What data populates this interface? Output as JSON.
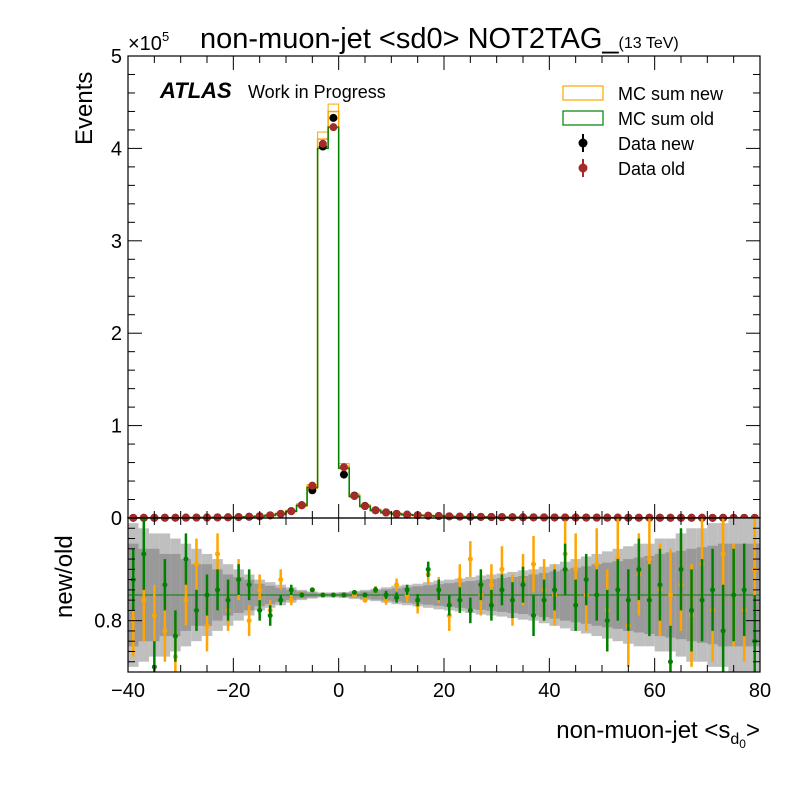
{
  "chart_data": {
    "type": "histogram",
    "title_main": "non-muon-jet <sd0> NOT2TAG_",
    "title_sub": "(13 TeV)",
    "ylabel_top": "Events",
    "ylabel_bottom": "new/old",
    "xlabel_main": "non-muon-jet <s",
    "xlabel_sub": "d",
    "xlabel_subsub": "0",
    "xlabel_end": ">",
    "atlas_label": "ATLAS",
    "atlas_sub": "Work in Progress",
    "exponent_base": "×10",
    "exponent_power": "5",
    "xlim": [
      -40,
      80
    ],
    "ylim_top": [
      0,
      500000
    ],
    "ylim_bottom": [
      0.7,
      1.0
    ],
    "x_ticks": [
      "−40",
      "−20",
      "0",
      "20",
      "40",
      "60",
      "80"
    ],
    "x_tick_values": [
      -40,
      -20,
      0,
      20,
      40,
      60,
      80
    ],
    "y_ticks_top": [
      "0",
      "1",
      "2",
      "3",
      "4",
      "5"
    ],
    "y_tick_values_top": [
      0,
      100000,
      200000,
      300000,
      400000,
      500000
    ],
    "y_ticks_bottom": [
      "0.8"
    ],
    "y_tick_values_bottom": [
      0.8
    ],
    "legend": {
      "position": "top-right",
      "entries": [
        {
          "label": "MC sum new",
          "type": "box",
          "color": "#ffa500"
        },
        {
          "label": "MC sum old",
          "type": "box",
          "color": "#008000"
        },
        {
          "label": "Data new",
          "type": "marker",
          "color": "#000000"
        },
        {
          "label": "Data old",
          "type": "marker",
          "color": "#a52a2a"
        }
      ]
    },
    "colors": {
      "mc_new": "#ffa500",
      "mc_old": "#008000",
      "data_new": "#000000",
      "data_old": "#a52a2a",
      "ratio_data": "#008000",
      "ratio_mc": "#ffa500",
      "band_light": "#bfbfbf",
      "band_dark": "#999999"
    },
    "bin_width": 2,
    "bin_centers": [
      -39,
      -37,
      -35,
      -33,
      -31,
      -29,
      -27,
      -25,
      -23,
      -21,
      -19,
      -17,
      -15,
      -13,
      -11,
      -9,
      -7,
      -5,
      -3,
      -1,
      1,
      3,
      5,
      7,
      9,
      11,
      13,
      15,
      17,
      19,
      21,
      23,
      25,
      27,
      29,
      31,
      33,
      35,
      37,
      39,
      41,
      43,
      45,
      47,
      49,
      51,
      53,
      55,
      57,
      59,
      61,
      63,
      65,
      67,
      69,
      71,
      73,
      75,
      77,
      79
    ],
    "mc_new": [
      200,
      220,
      250,
      280,
      320,
      370,
      430,
      520,
      630,
      780,
      1000,
      1350,
      1900,
      2900,
      4500,
      7500,
      14000,
      34000,
      410000,
      440000,
      56000,
      24000,
      13000,
      8500,
      6000,
      4500,
      3600,
      3000,
      2500,
      2100,
      1800,
      1550,
      1350,
      1200,
      1050,
      950,
      850,
      770,
      700,
      640,
      580,
      530,
      490,
      450,
      420,
      390,
      360,
      340,
      320,
      300,
      280,
      265,
      250,
      235,
      220,
      210,
      200,
      190,
      180,
      170
    ],
    "mc_old": [
      190,
      210,
      240,
      270,
      310,
      360,
      420,
      500,
      610,
      760,
      980,
      1320,
      1850,
      2850,
      4400,
      7300,
      13600,
      33000,
      400000,
      423000,
      54000,
      23500,
      12700,
      8300,
      5900,
      4400,
      3500,
      2950,
      2450,
      2060,
      1770,
      1520,
      1320,
      1180,
      1030,
      930,
      840,
      760,
      690,
      630,
      570,
      520,
      480,
      440,
      410,
      380,
      350,
      330,
      310,
      290,
      270,
      255,
      240,
      225,
      210,
      200,
      190,
      180,
      170,
      160
    ],
    "data_new": [
      200,
      210,
      250,
      290,
      330,
      360,
      440,
      510,
      640,
      790,
      1010,
      1340,
      1910,
      2880,
      4530,
      7480,
      13900,
      30000,
      402000,
      433000,
      47000,
      24200,
      13100,
      8450,
      6050,
      4480,
      3620,
      3010,
      2480,
      2110,
      1810,
      1540,
      1360,
      1190,
      1060,
      940,
      860,
      760,
      710,
      630,
      590,
      520,
      500,
      440,
      430,
      380,
      370,
      330,
      330,
      290,
      290,
      260,
      260,
      230,
      230,
      200,
      210,
      180,
      190,
      160
    ],
    "data_old": [
      190,
      200,
      240,
      280,
      320,
      350,
      430,
      500,
      620,
      770,
      990,
      1320,
      1880,
      2850,
      4450,
      7350,
      13700,
      35000,
      405000,
      423000,
      55000,
      23700,
      12800,
      8350,
      5950,
      4420,
      3560,
      2970,
      2450,
      2080,
      1790,
      1520,
      1340,
      1180,
      1040,
      930,
      850,
      750,
      700,
      620,
      580,
      510,
      490,
      430,
      420,
      370,
      360,
      320,
      320,
      280,
      280,
      250,
      250,
      220,
      220,
      190,
      200,
      170,
      180,
      150
    ],
    "ratio_line": 0.85,
    "ratio_data": [
      0.88,
      0.93,
      0.71,
      0.87,
      0.77,
      0.92,
      0.82,
      0.85,
      0.86,
      0.84,
      0.88,
      0.87,
      0.82,
      0.81,
      0.84,
      0.86,
      0.85,
      0.86,
      0.85,
      0.85,
      0.85,
      0.855,
      0.85,
      0.86,
      0.85,
      0.845,
      0.86,
      0.84,
      0.9,
      0.86,
      0.83,
      0.84,
      0.82,
      0.87,
      0.83,
      0.86,
      0.84,
      0.87,
      0.81,
      0.84,
      0.86,
      0.9,
      0.83,
      0.88,
      0.85,
      0.8,
      0.86,
      0.84,
      0.9,
      0.84,
      0.87,
      0.72,
      0.9,
      0.82,
      0.84,
      0.86,
      0.78,
      0.85,
      0.86,
      0.76
    ],
    "ratio_data_err": [
      0.06,
      0.07,
      0.05,
      0.05,
      0.05,
      0.05,
      0.04,
      0.04,
      0.04,
      0.04,
      0.03,
      0.03,
      0.02,
      0.02,
      0.01,
      0.01,
      0.005,
      0.003,
      0.001,
      0.001,
      0.002,
      0.003,
      0.004,
      0.006,
      0.008,
      0.01,
      0.01,
      0.012,
      0.015,
      0.02,
      0.02,
      0.025,
      0.025,
      0.03,
      0.03,
      0.03,
      0.035,
      0.035,
      0.04,
      0.04,
      0.04,
      0.05,
      0.05,
      0.05,
      0.05,
      0.06,
      0.06,
      0.06,
      0.06,
      0.07,
      0.07,
      0.07,
      0.08,
      0.08,
      0.08,
      0.08,
      0.09,
      0.09,
      0.09,
      0.09
    ],
    "ratio_mc": [
      0.8,
      0.84,
      0.81,
      0.78,
      0.73,
      0.84,
      0.91,
      0.79,
      0.93,
      0.82,
      0.88,
      0.8,
      0.86,
      0.82,
      0.88,
      0.84,
      0.85,
      0.86,
      0.85,
      0.85,
      0.85,
      0.85,
      0.84,
      0.86,
      0.84,
      0.87,
      0.85,
      0.83,
      0.89,
      0.86,
      0.81,
      0.88,
      0.92,
      0.85,
      0.87,
      0.9,
      0.84,
      0.88,
      0.91,
      0.86,
      0.85,
      0.93,
      0.9,
      0.85,
      0.91,
      0.82,
      0.92,
      0.79,
      0.89,
      0.92,
      0.86,
      0.85,
      0.87,
      0.81,
      0.91,
      0.82,
      0.93,
      0.85,
      0.82,
      0.9
    ],
    "ratio_mc_err": [
      0.07,
      0.08,
      0.06,
      0.06,
      0.06,
      0.05,
      0.05,
      0.05,
      0.04,
      0.04,
      0.04,
      0.03,
      0.03,
      0.02,
      0.02,
      0.01,
      0.006,
      0.003,
      0.001,
      0.001,
      0.002,
      0.003,
      0.005,
      0.007,
      0.009,
      0.012,
      0.014,
      0.016,
      0.02,
      0.025,
      0.03,
      0.03,
      0.035,
      0.04,
      0.04,
      0.045,
      0.05,
      0.05,
      0.055,
      0.06,
      0.06,
      0.065,
      0.07,
      0.07,
      0.07,
      0.08,
      0.08,
      0.08,
      0.08,
      0.09,
      0.09,
      0.09,
      0.09,
      0.1,
      0.1,
      0.1,
      0.1,
      0.1,
      0.1,
      0.1
    ],
    "band_outer": [
      0.14,
      0.13,
      0.12,
      0.12,
      0.11,
      0.1,
      0.09,
      0.08,
      0.07,
      0.06,
      0.05,
      0.04,
      0.03,
      0.025,
      0.02,
      0.015,
      0.01,
      0.007,
      0.005,
      0.005,
      0.006,
      0.008,
      0.01,
      0.012,
      0.015,
      0.018,
      0.02,
      0.022,
      0.025,
      0.028,
      0.03,
      0.032,
      0.035,
      0.038,
      0.04,
      0.042,
      0.045,
      0.048,
      0.05,
      0.055,
      0.06,
      0.065,
      0.07,
      0.075,
      0.08,
      0.085,
      0.09,
      0.095,
      0.1,
      0.1,
      0.11,
      0.11,
      0.12,
      0.13,
      0.13,
      0.14,
      0.14,
      0.15,
      0.15,
      0.15
    ],
    "band_inner": [
      0.1,
      0.09,
      0.09,
      0.08,
      0.08,
      0.07,
      0.06,
      0.06,
      0.05,
      0.04,
      0.035,
      0.03,
      0.022,
      0.018,
      0.014,
      0.01,
      0.007,
      0.005,
      0.003,
      0.003,
      0.004,
      0.005,
      0.007,
      0.009,
      0.011,
      0.013,
      0.015,
      0.017,
      0.019,
      0.021,
      0.023,
      0.025,
      0.027,
      0.029,
      0.031,
      0.033,
      0.035,
      0.037,
      0.04,
      0.043,
      0.046,
      0.05,
      0.053,
      0.056,
      0.06,
      0.063,
      0.066,
      0.07,
      0.073,
      0.076,
      0.08,
      0.083,
      0.086,
      0.09,
      0.093,
      0.096,
      0.1,
      0.1,
      0.1,
      0.1
    ]
  }
}
